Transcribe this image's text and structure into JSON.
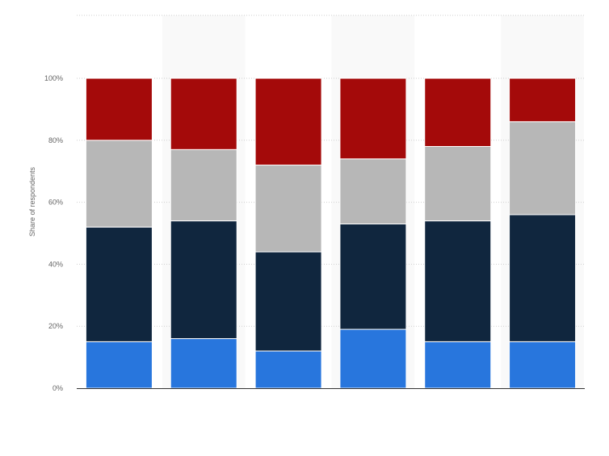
{
  "chart_data": {
    "type": "bar",
    "stacked": true,
    "ylabel": "Share of respondents",
    "ylim": [
      0,
      100
    ],
    "yticks": [
      0,
      20,
      40,
      60,
      80,
      100
    ],
    "ytick_labels": [
      "0%",
      "20%",
      "40%",
      "60%",
      "80%",
      "100%"
    ],
    "categories": [
      "",
      "",
      "",
      "",
      "",
      ""
    ],
    "grid": true,
    "series": [
      {
        "values": [
          15,
          16,
          12,
          19,
          15,
          15
        ],
        "color": "#2876dd"
      },
      {
        "values": [
          37,
          38,
          32,
          34,
          39,
          41
        ],
        "color": "#10263e"
      },
      {
        "values": [
          28,
          23,
          28,
          21,
          24,
          30
        ],
        "color": "#b7b7b7"
      },
      {
        "values": [
          20,
          23,
          28,
          26,
          22,
          14
        ],
        "color": "#a40a0a"
      }
    ]
  }
}
